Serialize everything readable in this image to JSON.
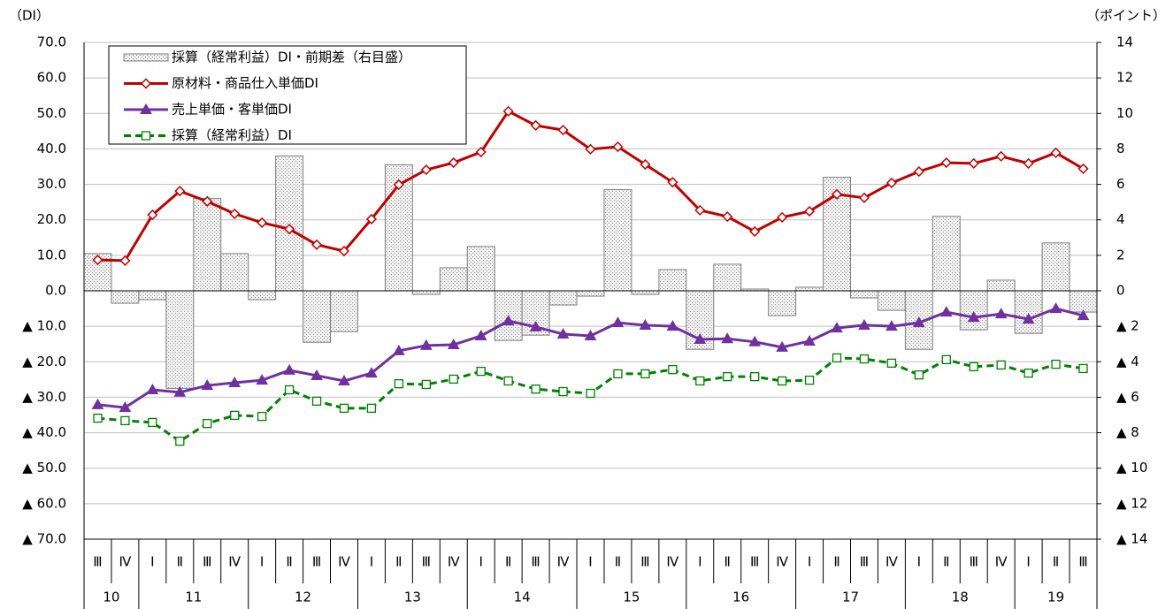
{
  "chart_data": {
    "type": "combo",
    "y_label": "（DI）",
    "y2_label": "（ポイント）",
    "category_groups": [
      {
        "label": "10",
        "categories": [
          "Ⅲ",
          "Ⅳ"
        ]
      },
      {
        "label": "11",
        "categories": [
          "Ⅰ",
          "Ⅱ",
          "Ⅲ",
          "Ⅳ"
        ]
      },
      {
        "label": "12",
        "categories": [
          "Ⅰ",
          "Ⅱ",
          "Ⅲ",
          "Ⅳ"
        ]
      },
      {
        "label": "13",
        "categories": [
          "Ⅰ",
          "Ⅱ",
          "Ⅲ",
          "Ⅳ"
        ]
      },
      {
        "label": "14",
        "categories": [
          "Ⅰ",
          "Ⅱ",
          "Ⅲ",
          "Ⅳ"
        ]
      },
      {
        "label": "15",
        "categories": [
          "Ⅰ",
          "Ⅱ",
          "Ⅲ",
          "Ⅳ"
        ]
      },
      {
        "label": "16",
        "categories": [
          "Ⅰ",
          "Ⅱ",
          "Ⅲ",
          "Ⅳ"
        ]
      },
      {
        "label": "17",
        "categories": [
          "Ⅰ",
          "Ⅱ",
          "Ⅲ",
          "Ⅳ"
        ]
      },
      {
        "label": "18",
        "categories": [
          "Ⅰ",
          "Ⅱ",
          "Ⅲ",
          "Ⅳ"
        ]
      },
      {
        "label": "19",
        "categories": [
          "Ⅰ",
          "Ⅱ",
          "Ⅲ"
        ]
      }
    ],
    "series": [
      {
        "name": "採算（経常利益）DI・前期差（右目盛）",
        "type": "bar",
        "axis": "y2",
        "color": "#bfbfbf",
        "values": [
          2.1,
          -0.7,
          -0.5,
          -5.5,
          5.2,
          2.1,
          -0.5,
          7.6,
          -2.9,
          -2.3,
          0,
          7.1,
          -0.2,
          1.3,
          2.5,
          -2.8,
          -2.5,
          -0.8,
          -0.3,
          5.7,
          -0.2,
          1.2,
          -3.3,
          1.5,
          0.1,
          -1.4,
          0.2,
          6.4,
          -0.4,
          -1.1,
          -3.3,
          4.2,
          -2.2,
          0.6,
          -2.4,
          2.7,
          -1.2
        ]
      },
      {
        "name": "原材料・商品仕入単価DI",
        "type": "line",
        "marker": "diamond",
        "color": "#c00000",
        "values": [
          8.7,
          8.5,
          21.4,
          28.1,
          25.2,
          21.7,
          19.2,
          17.4,
          13.0,
          11.2,
          20.2,
          29.9,
          34.1,
          36.1,
          39.1,
          50.6,
          46.6,
          45.3,
          39.9,
          40.6,
          35.6,
          30.6,
          22.7,
          20.9,
          16.7,
          20.7,
          22.4,
          27.2,
          26.2,
          30.4,
          33.6,
          36.1,
          35.9,
          37.9,
          35.9,
          38.9,
          34.4
        ]
      },
      {
        "name": "売上単価・客単価DI",
        "type": "line",
        "marker": "triangle",
        "color": "#7030a0",
        "values": [
          -32.1,
          -32.9,
          -27.9,
          -28.6,
          -26.7,
          -25.9,
          -25.2,
          -22.4,
          -23.9,
          -25.4,
          -23.2,
          -16.9,
          -15.4,
          -15.2,
          -12.7,
          -8.5,
          -10.2,
          -12.2,
          -12.7,
          -9.0,
          -9.7,
          -10.0,
          -13.7,
          -13.5,
          -14.4,
          -15.9,
          -14.2,
          -10.5,
          -9.7,
          -10.0,
          -9.0,
          -6.0,
          -7.5,
          -6.5,
          -8.0,
          -5.0,
          -7.0
        ]
      },
      {
        "name": "採算（経常利益）DI",
        "type": "line",
        "marker": "square",
        "dashed": true,
        "color": "#008000",
        "values": [
          -35.9,
          -36.6,
          -37.1,
          -42.4,
          -37.4,
          -35.1,
          -35.4,
          -27.9,
          -31.1,
          -33.1,
          -33.1,
          -26.2,
          -26.4,
          -24.9,
          -22.7,
          -25.4,
          -27.7,
          -28.4,
          -28.9,
          -23.4,
          -23.4,
          -22.2,
          -25.4,
          -24.2,
          -24.2,
          -25.4,
          -25.2,
          -18.9,
          -19.2,
          -20.4,
          -23.7,
          -19.4,
          -21.4,
          -20.9,
          -23.2,
          -20.7,
          -21.9
        ]
      }
    ],
    "ylim": [
      -70,
      70
    ],
    "yticks": [
      {
        "value": 70,
        "label": "70.0"
      },
      {
        "value": 60,
        "label": "60.0"
      },
      {
        "value": 50,
        "label": "50.0"
      },
      {
        "value": 40,
        "label": "40.0"
      },
      {
        "value": 30,
        "label": "30.0"
      },
      {
        "value": 20,
        "label": "20.0"
      },
      {
        "value": 10,
        "label": "10.0"
      },
      {
        "value": 0,
        "label": "0.0"
      },
      {
        "value": -10,
        "label": "▲ 10.0"
      },
      {
        "value": -20,
        "label": "▲ 20.0"
      },
      {
        "value": -30,
        "label": "▲ 30.0"
      },
      {
        "value": -40,
        "label": "▲ 40.0"
      },
      {
        "value": -50,
        "label": "▲ 50.0"
      },
      {
        "value": -60,
        "label": "▲ 60.0"
      },
      {
        "value": -70,
        "label": "▲ 70.0"
      }
    ],
    "y2lim": [
      -14,
      14
    ],
    "y2ticks": [
      14,
      12,
      10,
      8,
      6,
      4,
      2,
      0,
      {
        "value": -2,
        "label": "▲ 2"
      },
      {
        "value": -4,
        "label": "▲ 4"
      },
      {
        "value": -6,
        "label": "▲ 6"
      },
      {
        "value": -8,
        "label": "▲ 8"
      },
      {
        "value": -10,
        "label": "▲ 10"
      },
      {
        "value": -12,
        "label": "▲ 12"
      },
      {
        "value": -14,
        "label": "▲ 14"
      }
    ],
    "grid": true,
    "legend": "top-left"
  }
}
